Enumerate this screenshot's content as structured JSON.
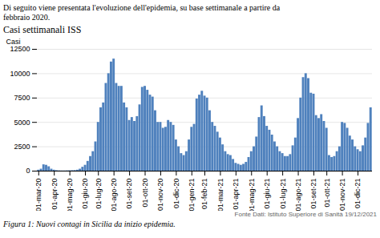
{
  "chart_data": {
    "type": "bar",
    "title": "Casi settimanali ISS",
    "subtitle": "Di seguito viene presentata l'evoluzione dell'epidemia, su base settimanale a partire da\nfebbraio 2020.",
    "caption": "Figura 1: Nuovi contagi in Sicilia da inizio epidemia.",
    "annotations": [
      "Fonte Dati: Istituto Superiore di Sanità 19/12/2021"
    ],
    "ylabel": "Casi",
    "color": "#4f81bd",
    "ylim": [
      0,
      12500
    ],
    "yticks": [
      0,
      2500,
      5000,
      7500,
      10000,
      12500
    ],
    "grid": true,
    "categories": [
      "01-mar-20",
      null,
      null,
      null,
      null,
      null,
      "01-apr-20",
      null,
      null,
      null,
      null,
      null,
      "01-mag-20",
      null,
      null,
      null,
      null,
      null,
      "01-giu-20",
      null,
      null,
      null,
      null,
      "01-lug-20",
      null,
      null,
      null,
      null,
      null,
      "01-ago-20",
      null,
      null,
      null,
      null,
      null,
      "01-set-20",
      null,
      null,
      null,
      null,
      null,
      "01-ott-20",
      null,
      null,
      null,
      null,
      null,
      "01-nov-20",
      null,
      null,
      null,
      null,
      null,
      "01-dic-20",
      null,
      null,
      null,
      null,
      null,
      "01-gen-21",
      null,
      null,
      null,
      null,
      "01-feb-21",
      null,
      null,
      null,
      null,
      null,
      "01-mar-21",
      null,
      null,
      null,
      null,
      null,
      "01-apr-21",
      null,
      null,
      null,
      null,
      null,
      "01-mag-21",
      null,
      null,
      null,
      null,
      null,
      "01-giu-21",
      null,
      null,
      null,
      null,
      null,
      "01-lug-21",
      null,
      null,
      null,
      null,
      null,
      "01-ago-21",
      null,
      null,
      null,
      null,
      null,
      "01-set-21",
      null,
      null,
      null,
      null,
      "01-ott-21",
      null,
      null,
      null,
      null,
      null,
      "01-nov-21",
      null,
      null,
      null,
      null,
      null,
      "01-dic-21",
      null,
      null,
      null,
      null,
      null
    ],
    "values": [
      100,
      200,
      650,
      600,
      450,
      200,
      100,
      50,
      30,
      20,
      20,
      30,
      40,
      50,
      60,
      100,
      200,
      400,
      600,
      1000,
      1500,
      2000,
      3000,
      5000,
      6500,
      7000,
      9000,
      10000,
      11200,
      11500,
      9000,
      8700,
      8700,
      7000,
      6500,
      5200,
      5500,
      5100,
      5600,
      6800,
      8600,
      8700,
      8300,
      7800,
      7600,
      6200,
      5000,
      5000,
      4400,
      4500,
      5200,
      5000,
      4700,
      3200,
      2500,
      1800,
      1600,
      2000,
      3200,
      4500,
      4800,
      7400,
      7800,
      8200,
      7700,
      7500,
      6200,
      5000,
      4600,
      4000,
      3400,
      2700,
      2000,
      1700,
      1600,
      1200,
      800,
      700,
      600,
      700,
      900,
      1400,
      2000,
      2500,
      3500,
      5500,
      6700,
      5600,
      4600,
      4200,
      3700,
      3000,
      2500,
      2000,
      1800,
      1500,
      1500,
      1700,
      2600,
      3400,
      5400,
      7500,
      9600,
      10000,
      9500,
      8000,
      7900,
      5700,
      5400,
      5800,
      5100,
      4400,
      1600,
      1400,
      1500,
      2000,
      2500,
      5000,
      4900,
      4400,
      3600,
      3200,
      2500,
      2200,
      2000,
      2600,
      3400,
      4900,
      6500
    ]
  }
}
